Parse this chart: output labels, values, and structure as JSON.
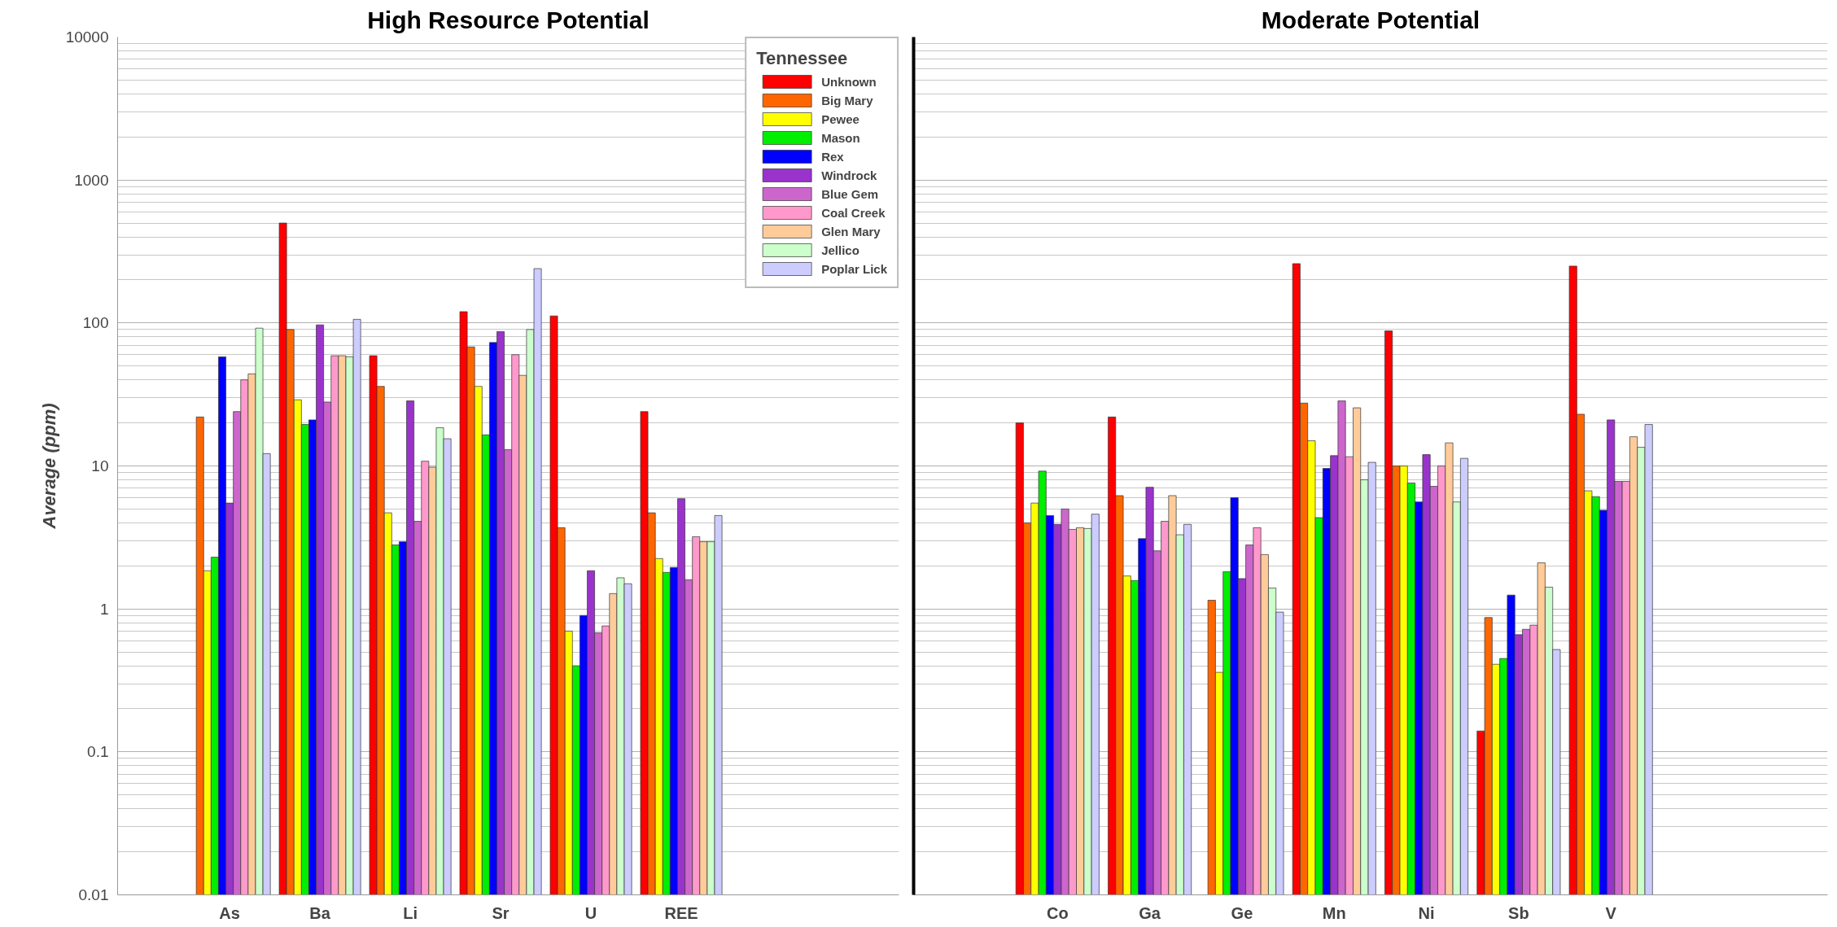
{
  "chart_data": [
    {
      "type": "bar",
      "title": "High Resource Potential",
      "ylabel": "Average (ppm)",
      "log": true,
      "grid": "y",
      "legend": "top right",
      "legend_title": "Tennessee",
      "categories": [
        "As",
        "Ba",
        "Li",
        "Sr",
        "U",
        "REE"
      ],
      "ylim": [
        0.01,
        10000
      ],
      "yticks": [
        0.01,
        0.1,
        1,
        10,
        100,
        1000,
        10000
      ],
      "series": [
        {
          "name": "Unknown",
          "color": "#ff0000",
          "values": [
            null,
            500,
            59,
            120,
            112,
            24
          ]
        },
        {
          "name": "Big Mary",
          "color": "#ff6600",
          "values": [
            22,
            90,
            36,
            68,
            3.7,
            4.7
          ]
        },
        {
          "name": "Pewee",
          "color": "#ffff00",
          "values": [
            1.85,
            29,
            4.7,
            36,
            0.7,
            2.25
          ]
        },
        {
          "name": "Mason",
          "color": "#00ee00",
          "values": [
            2.3,
            19.5,
            2.8,
            16.5,
            0.4,
            1.8
          ]
        },
        {
          "name": "Rex",
          "color": "#0000ff",
          "values": [
            58,
            21,
            2.95,
            73,
            0.9,
            1.95
          ]
        },
        {
          "name": "Windrock",
          "color": "#9933cc",
          "values": [
            5.5,
            97,
            28.5,
            87,
            1.85,
            5.9
          ]
        },
        {
          "name": "Blue Gem",
          "color": "#cc66cc",
          "values": [
            24,
            28,
            4.1,
            13,
            0.68,
            1.6
          ]
        },
        {
          "name": "Coal Creek",
          "color": "#ff99cc",
          "values": [
            40,
            59,
            10.8,
            60,
            0.76,
            3.2
          ]
        },
        {
          "name": "Glen Mary",
          "color": "#ffcc99",
          "values": [
            44,
            59,
            9.8,
            43,
            1.28,
            2.95
          ]
        },
        {
          "name": "Jellico",
          "color": "#ccffcc",
          "values": [
            92,
            58,
            18.5,
            90,
            1.65,
            2.95
          ]
        },
        {
          "name": "Poplar Lick",
          "color": "#ccccff",
          "values": [
            12.2,
            106,
            15.5,
            240,
            1.5,
            4.5
          ]
        }
      ]
    },
    {
      "type": "bar",
      "title": "Moderate Potential",
      "log": true,
      "grid": "y",
      "tick_labels": "x",
      "categories": [
        "Co",
        "Ga",
        "Ge",
        "Mn",
        "Ni",
        "Sb",
        "V"
      ],
      "ylim": [
        0.01,
        10000
      ],
      "yticks": [
        0.01,
        0.1,
        1,
        10,
        100,
        1000,
        10000
      ],
      "series": [
        {
          "color": "#ff0000",
          "values": [
            20,
            22,
            null,
            260,
            88,
            0.14,
            250
          ]
        },
        {
          "color": "#ff6600",
          "values": [
            4,
            6.2,
            1.15,
            27.5,
            10,
            0.87,
            23
          ]
        },
        {
          "color": "#ffff00",
          "values": [
            5.5,
            1.7,
            0.36,
            15,
            10,
            0.41,
            6.7
          ]
        },
        {
          "color": "#00ee00",
          "values": [
            9.2,
            1.58,
            1.82,
            4.35,
            7.6,
            0.45,
            6.1
          ]
        },
        {
          "color": "#0000ff",
          "values": [
            4.5,
            3.1,
            6,
            9.6,
            5.6,
            1.25,
            4.9
          ]
        },
        {
          "color": "#9933cc",
          "values": [
            3.9,
            7.1,
            1.63,
            11.8,
            12,
            0.66,
            21
          ]
        },
        {
          "color": "#cc66cc",
          "values": [
            5,
            2.55,
            2.8,
            28.5,
            7.2,
            0.72,
            7.8
          ]
        },
        {
          "color": "#ff99cc",
          "values": [
            3.6,
            4.1,
            3.7,
            11.6,
            10,
            0.77,
            7.8
          ]
        },
        {
          "color": "#ffcc99",
          "values": [
            3.7,
            6.2,
            2.4,
            25.5,
            14.5,
            2.1,
            16
          ]
        },
        {
          "color": "#ccffcc",
          "values": [
            3.65,
            3.3,
            1.4,
            8,
            5.6,
            1.42,
            13.5
          ]
        },
        {
          "color": "#ccccff",
          "values": [
            4.6,
            3.9,
            0.95,
            10.6,
            11.3,
            0.52,
            19.5
          ]
        }
      ]
    }
  ]
}
